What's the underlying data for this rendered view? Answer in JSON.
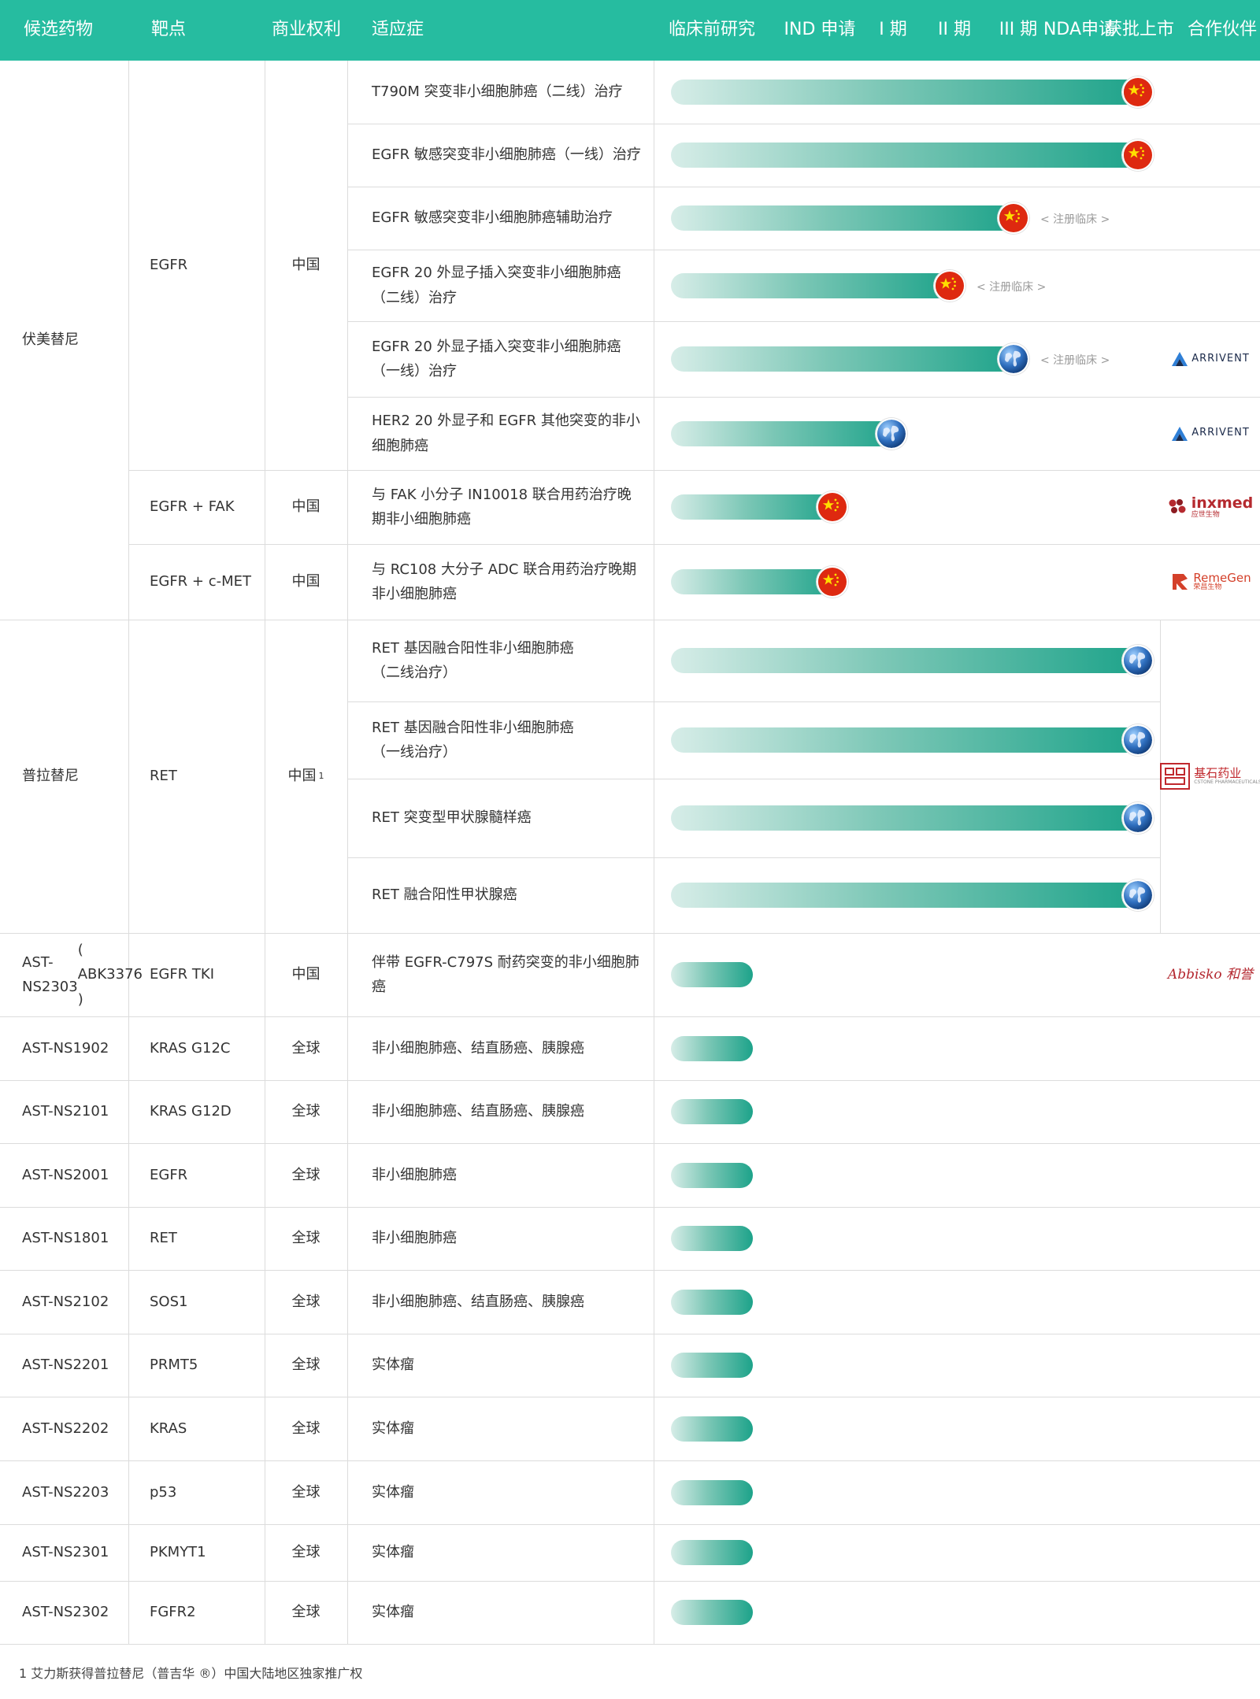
{
  "colors": {
    "header_bg": "#26bca0",
    "bar_start": "#d7ede8",
    "bar_end": "#1da38a",
    "flag_red": "#de2910",
    "flag_star": "#ffde00",
    "globe_blue": "#2f6fbf"
  },
  "header": {
    "candidate": "候选药物",
    "target": "靶点",
    "rights": "商业权利",
    "indication": "适应症",
    "preclinical": "临床前研究",
    "ind": "IND 申请",
    "phase1": "I 期",
    "phase2": "II 期",
    "phase3": "III 期",
    "nda": [
      "NDA",
      "申请"
    ],
    "approved": [
      "获批",
      "上市"
    ],
    "partner": [
      "合作",
      "伙伴"
    ]
  },
  "groups": [
    {
      "candidate": [
        "伏美替尼"
      ],
      "rows": [
        0,
        7
      ]
    },
    {
      "candidate": [
        "普拉替尼"
      ],
      "rows": [
        8,
        11
      ]
    },
    {
      "candidate": [
        "AST-NS2303",
        "( ABK3376 )"
      ],
      "rows": [
        12,
        12
      ]
    },
    {
      "candidate": [
        "AST-NS1902"
      ],
      "rows": [
        13,
        13
      ]
    },
    {
      "candidate": [
        "AST-NS2101"
      ],
      "rows": [
        14,
        14
      ]
    },
    {
      "candidate": [
        "AST-NS2001"
      ],
      "rows": [
        15,
        15
      ]
    },
    {
      "candidate": [
        "AST-NS1801"
      ],
      "rows": [
        16,
        16
      ]
    },
    {
      "candidate": [
        "AST-NS2102"
      ],
      "rows": [
        17,
        17
      ]
    },
    {
      "candidate": [
        "AST-NS2201"
      ],
      "rows": [
        18,
        18
      ]
    },
    {
      "candidate": [
        "AST-NS2202"
      ],
      "rows": [
        19,
        19
      ]
    },
    {
      "candidate": [
        "AST-NS2203"
      ],
      "rows": [
        20,
        20
      ]
    },
    {
      "candidate": [
        "AST-NS2301"
      ],
      "rows": [
        21,
        21
      ]
    },
    {
      "candidate": [
        "AST-NS2302"
      ],
      "rows": [
        22,
        22
      ]
    }
  ],
  "targets": [
    {
      "label": "EGFR",
      "rows": [
        0,
        5
      ],
      "rights": "中国",
      "rights_sup": ""
    },
    {
      "label": "EGFR + FAK",
      "rows": [
        6,
        6
      ],
      "rights": "中国",
      "rights_sup": ""
    },
    {
      "label": "EGFR + c-MET",
      "rows": [
        7,
        7
      ],
      "rights": "中国",
      "rights_sup": ""
    },
    {
      "label": "RET",
      "rows": [
        8,
        11
      ],
      "rights": "中国",
      "rights_sup": "1"
    },
    {
      "label": "EGFR TKI",
      "rows": [
        12,
        12
      ],
      "rights": "中国",
      "rights_sup": ""
    },
    {
      "label": "KRAS G12C",
      "rows": [
        13,
        13
      ],
      "rights": "全球",
      "rights_sup": ""
    },
    {
      "label": "KRAS G12D",
      "rows": [
        14,
        14
      ],
      "rights": "全球",
      "rights_sup": ""
    },
    {
      "label": "EGFR",
      "rows": [
        15,
        15
      ],
      "rights": "全球",
      "rights_sup": ""
    },
    {
      "label": "RET",
      "rows": [
        16,
        16
      ],
      "rights": "全球",
      "rights_sup": ""
    },
    {
      "label": "SOS1",
      "rows": [
        17,
        17
      ],
      "rights": "全球",
      "rights_sup": ""
    },
    {
      "label": "PRMT5",
      "rows": [
        18,
        18
      ],
      "rights": "全球",
      "rights_sup": ""
    },
    {
      "label": "KRAS",
      "rows": [
        19,
        19
      ],
      "rights": "全球",
      "rights_sup": ""
    },
    {
      "label": "p53",
      "rows": [
        20,
        20
      ],
      "rights": "全球",
      "rights_sup": ""
    },
    {
      "label": "PKMYT1",
      "rows": [
        21,
        21
      ],
      "rights": "全球",
      "rights_sup": ""
    },
    {
      "label": "FGFR2",
      "rows": [
        22,
        22
      ],
      "rights": "全球",
      "rights_sup": ""
    }
  ],
  "rows": [
    {
      "indication": [
        "T790M 突变非小细胞肺癌（二线）治疗"
      ],
      "stage": "approved",
      "marker": "china",
      "note": ""
    },
    {
      "indication": [
        "EGFR 敏感突变非小细胞肺癌（一线）治疗"
      ],
      "stage": "approved",
      "marker": "china",
      "note": ""
    },
    {
      "indication": [
        "EGFR 敏感突变非小细胞肺癌辅助治疗"
      ],
      "stage": "phase3",
      "marker": "china",
      "note": "< 注册临床 >"
    },
    {
      "indication": [
        "EGFR 20 外显子插入突变非小细胞肺癌",
        "（二线）治疗"
      ],
      "stage": "phase2",
      "marker": "china",
      "note": "< 注册临床 >"
    },
    {
      "indication": [
        "EGFR 20 外显子插入突变非小细胞肺癌",
        "（一线）治疗"
      ],
      "stage": "phase3",
      "marker": "globe",
      "note": "< 注册临床 >"
    },
    {
      "indication": [
        "HER2 20 外显子和 EGFR 其他突变的非小",
        "细胞肺癌"
      ],
      "stage": "phase1",
      "marker": "globe",
      "note": ""
    },
    {
      "indication": [
        "与 FAK 小分子 IN10018 联合用药治疗晚",
        "期非小细胞肺癌"
      ],
      "stage": "ind",
      "marker": "china",
      "note": ""
    },
    {
      "indication": [
        "与 RC108 大分子 ADC 联合用药治疗晚期",
        "非小细胞肺癌"
      ],
      "stage": "ind",
      "marker": "china",
      "note": ""
    },
    {
      "indication": [
        "RET 基因融合阳性非小细胞肺癌",
        "（二线治疗）"
      ],
      "stage": "approved",
      "marker": "globe",
      "note": ""
    },
    {
      "indication": [
        "RET 基因融合阳性非小细胞肺癌",
        "（一线治疗）"
      ],
      "stage": "approved",
      "marker": "globe",
      "note": ""
    },
    {
      "indication": [
        "RET 突变型甲状腺髓样癌"
      ],
      "stage": "approved",
      "marker": "globe",
      "note": ""
    },
    {
      "indication": [
        "RET 融合阳性甲状腺癌"
      ],
      "stage": "approved",
      "marker": "globe",
      "note": ""
    },
    {
      "indication": [
        "伴带 EGFR-C797S 耐药突变的非小细胞肺",
        "癌"
      ],
      "stage": "preclinical",
      "marker": "",
      "note": ""
    },
    {
      "indication": [
        "非小细胞肺癌、结直肠癌、胰腺癌"
      ],
      "stage": "preclinical",
      "marker": "",
      "note": ""
    },
    {
      "indication": [
        "非小细胞肺癌、结直肠癌、胰腺癌"
      ],
      "stage": "preclinical",
      "marker": "",
      "note": ""
    },
    {
      "indication": [
        "非小细胞肺癌"
      ],
      "stage": "preclinical",
      "marker": "",
      "note": ""
    },
    {
      "indication": [
        "非小细胞肺癌"
      ],
      "stage": "preclinical",
      "marker": "",
      "note": ""
    },
    {
      "indication": [
        "非小细胞肺癌、结直肠癌、胰腺癌"
      ],
      "stage": "preclinical",
      "marker": "",
      "note": ""
    },
    {
      "indication": [
        "实体瘤"
      ],
      "stage": "preclinical",
      "marker": "",
      "note": ""
    },
    {
      "indication": [
        "实体瘤"
      ],
      "stage": "preclinical",
      "marker": "",
      "note": ""
    },
    {
      "indication": [
        "实体瘤"
      ],
      "stage": "preclinical",
      "marker": "",
      "note": ""
    },
    {
      "indication": [
        "实体瘤"
      ],
      "stage": "preclinical",
      "marker": "",
      "note": ""
    },
    {
      "indication": [
        "实体瘤"
      ],
      "stage": "preclinical",
      "marker": "",
      "note": ""
    }
  ],
  "partners": [
    {
      "rows": [
        4,
        4
      ],
      "name": "ARRIVENT",
      "sub": "",
      "icon": "arrivent-logo-icon",
      "color": "#1b2a4a"
    },
    {
      "rows": [
        5,
        5
      ],
      "name": "ARRIVENT",
      "sub": "",
      "icon": "arrivent-logo-icon",
      "color": "#1b2a4a"
    },
    {
      "rows": [
        6,
        6
      ],
      "name": "inxmed",
      "sub": "应世生物",
      "icon": "inxmed-logo-icon",
      "color": "#b52a2f"
    },
    {
      "rows": [
        7,
        7
      ],
      "name": "RemeGen",
      "sub": "荣昌生物",
      "icon": "remegen-logo-icon",
      "color": "#d4402a"
    },
    {
      "rows": [
        8,
        11
      ],
      "name": "基石药业",
      "sub": "CSTONE PHARMACEUTICALS",
      "icon": "cstone-logo-icon",
      "color": "#c0282d"
    },
    {
      "rows": [
        12,
        12
      ],
      "name": "Abbisko 和誉",
      "sub": "",
      "icon": "",
      "color": "#b3262e"
    }
  ],
  "footnote": "1 艾力斯获得普拉替尼（普吉华 ®）中国大陆地区独家推广权"
}
